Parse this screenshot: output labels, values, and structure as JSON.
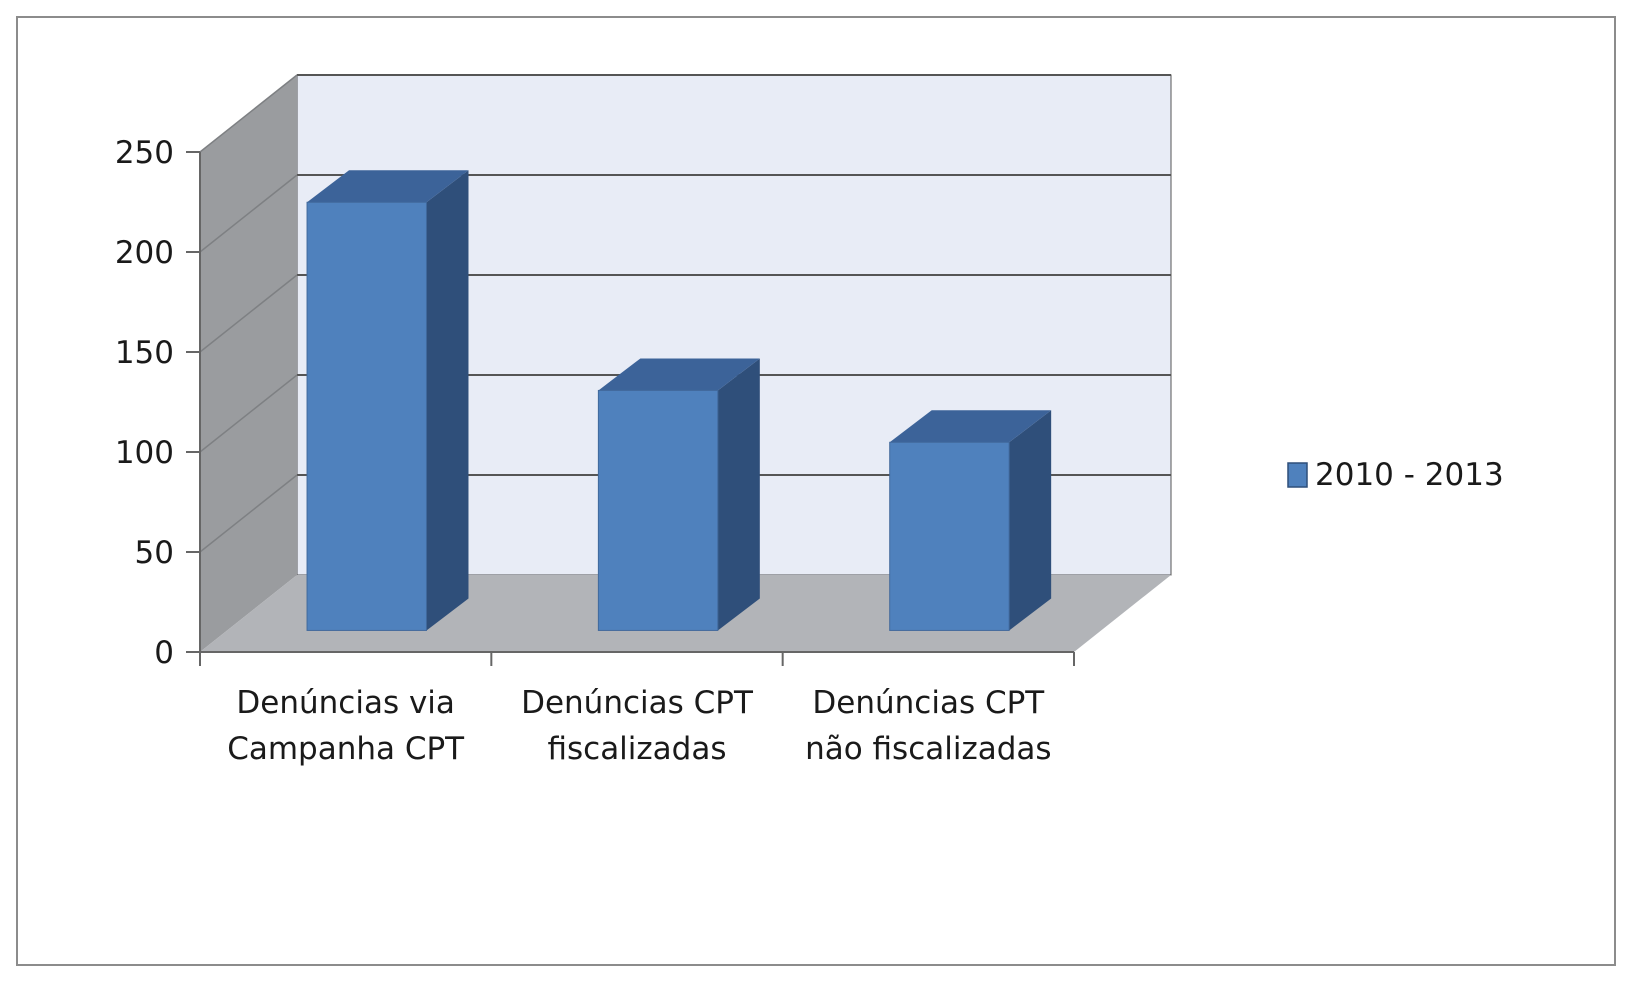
{
  "chart_data": {
    "type": "bar",
    "style": "3d-column",
    "categories": [
      [
        "Denúncias via",
        "Campanha CPT"
      ],
      [
        "Denúncias CPT",
        "fiscalizadas"
      ],
      [
        "Denúncias CPT",
        "não fiscalizadas"
      ]
    ],
    "series": [
      {
        "name": "2010 - 2013",
        "values": [
          223,
          125,
          98
        ]
      }
    ],
    "ylim": [
      0,
      250
    ],
    "yticks": [
      0,
      50,
      100,
      150,
      200,
      250
    ],
    "grid": true,
    "legend": "right",
    "colors": {
      "bar_front": "#4f81bd",
      "bar_side": "#2f4f7a",
      "bar_top": "#3c6399",
      "back_wall": "#e8ecf6",
      "side_wall": "#9a9c9f",
      "floor": "#b2b4b8",
      "grid": "#555555",
      "frame": "#8c8c8c"
    }
  }
}
